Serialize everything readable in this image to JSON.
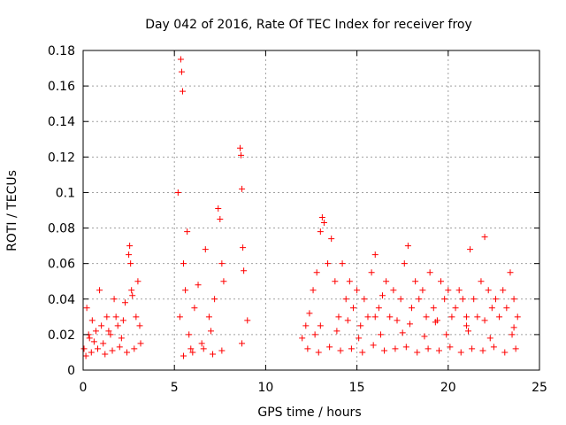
{
  "chart_data": {
    "type": "scatter",
    "title": "Day 042 of 2016, Rate Of TEC Index for receiver froy",
    "xlabel": "GPS time / hours",
    "ylabel": "ROTI / TECUs",
    "xlim": [
      0,
      25
    ],
    "ylim": [
      0,
      0.18
    ],
    "xticks": [
      0,
      5,
      10,
      15,
      20,
      25
    ],
    "xtick_labels": [
      "0",
      "5",
      "10",
      "15",
      "20",
      "25"
    ],
    "yticks": [
      0,
      0.02,
      0.04,
      0.06,
      0.08,
      0.1,
      0.12,
      0.14,
      0.16,
      0.18
    ],
    "ytick_labels": [
      "0",
      "0.02",
      "0.04",
      "0.06",
      "0.08",
      "0.1",
      "0.12",
      "0.14",
      "0.16",
      "0.18"
    ],
    "grid": true,
    "marker": "+",
    "color": "#ff0000",
    "series": [
      {
        "name": "ROTI",
        "x": [
          0.05,
          0.2,
          0.35,
          0.5,
          0.7,
          0.9,
          1.1,
          1.3,
          1.5,
          1.7,
          1.9,
          2.1,
          2.3,
          2.5,
          2.55,
          2.6,
          2.7,
          2.9,
          3.0,
          3.1,
          0.15,
          0.45,
          0.8,
          1.2,
          1.6,
          2.0,
          2.4,
          2.8,
          3.15,
          0.3,
          1.0,
          1.8,
          2.65,
          0.6,
          1.4,
          2.2,
          5.2,
          5.3,
          5.35,
          5.4,
          5.45,
          5.5,
          5.6,
          5.7,
          5.8,
          5.9,
          6.1,
          6.3,
          6.5,
          6.7,
          6.9,
          7.0,
          7.2,
          7.4,
          7.5,
          7.6,
          7.7,
          8.6,
          8.65,
          8.7,
          8.75,
          8.8,
          9.0,
          5.5,
          6.0,
          6.6,
          7.1,
          7.6,
          8.7,
          12.0,
          12.2,
          12.4,
          12.6,
          12.8,
          13.0,
          13.1,
          13.2,
          13.4,
          13.6,
          13.8,
          14.0,
          14.2,
          14.4,
          14.6,
          14.8,
          15.0,
          15.2,
          15.4,
          15.6,
          15.8,
          16.0,
          16.2,
          16.4,
          16.6,
          16.8,
          17.0,
          17.2,
          17.4,
          17.6,
          17.8,
          18.0,
          18.2,
          18.4,
          18.6,
          18.8,
          19.0,
          19.2,
          19.4,
          19.6,
          19.8,
          20.0,
          20.2,
          20.4,
          20.6,
          20.8,
          21.0,
          21.2,
          21.4,
          21.6,
          21.8,
          22.0,
          22.2,
          22.4,
          22.6,
          22.8,
          23.0,
          23.2,
          23.4,
          23.6,
          23.8,
          12.3,
          12.9,
          13.5,
          14.1,
          14.7,
          15.3,
          15.9,
          16.5,
          17.1,
          17.7,
          18.3,
          18.9,
          19.5,
          20.1,
          20.7,
          21.3,
          21.9,
          22.5,
          23.1,
          23.7,
          12.7,
          13.9,
          15.1,
          16.3,
          17.5,
          18.7,
          19.9,
          21.1,
          22.3,
          23.5,
          13.0,
          14.5,
          16.0,
          17.9,
          19.3,
          21.0,
          22.0,
          23.6
        ],
        "y": [
          0.012,
          0.035,
          0.018,
          0.028,
          0.022,
          0.045,
          0.015,
          0.03,
          0.02,
          0.04,
          0.025,
          0.018,
          0.038,
          0.065,
          0.07,
          0.06,
          0.042,
          0.03,
          0.05,
          0.025,
          0.008,
          0.01,
          0.012,
          0.009,
          0.011,
          0.013,
          0.01,
          0.012,
          0.015,
          0.02,
          0.025,
          0.03,
          0.045,
          0.016,
          0.022,
          0.028,
          0.1,
          0.03,
          0.175,
          0.168,
          0.157,
          0.06,
          0.045,
          0.078,
          0.02,
          0.012,
          0.035,
          0.048,
          0.015,
          0.068,
          0.03,
          0.022,
          0.04,
          0.091,
          0.085,
          0.06,
          0.05,
          0.125,
          0.121,
          0.102,
          0.069,
          0.056,
          0.028,
          0.008,
          0.01,
          0.012,
          0.009,
          0.011,
          0.015,
          0.018,
          0.025,
          0.032,
          0.045,
          0.055,
          0.078,
          0.086,
          0.083,
          0.06,
          0.074,
          0.05,
          0.03,
          0.06,
          0.04,
          0.05,
          0.035,
          0.045,
          0.025,
          0.04,
          0.03,
          0.055,
          0.065,
          0.035,
          0.042,
          0.05,
          0.03,
          0.045,
          0.028,
          0.04,
          0.06,
          0.07,
          0.035,
          0.05,
          0.04,
          0.045,
          0.03,
          0.055,
          0.035,
          0.028,
          0.05,
          0.04,
          0.045,
          0.03,
          0.035,
          0.045,
          0.04,
          0.03,
          0.068,
          0.04,
          0.03,
          0.05,
          0.075,
          0.045,
          0.035,
          0.04,
          0.03,
          0.045,
          0.035,
          0.055,
          0.04,
          0.03,
          0.012,
          0.01,
          0.013,
          0.011,
          0.012,
          0.01,
          0.014,
          0.011,
          0.012,
          0.013,
          0.01,
          0.012,
          0.011,
          0.013,
          0.01,
          0.012,
          0.011,
          0.013,
          0.01,
          0.012,
          0.02,
          0.022,
          0.018,
          0.02,
          0.021,
          0.019,
          0.02,
          0.022,
          0.018,
          0.02,
          0.025,
          0.028,
          0.03,
          0.026,
          0.027,
          0.025,
          0.028,
          0.024
        ]
      }
    ]
  }
}
